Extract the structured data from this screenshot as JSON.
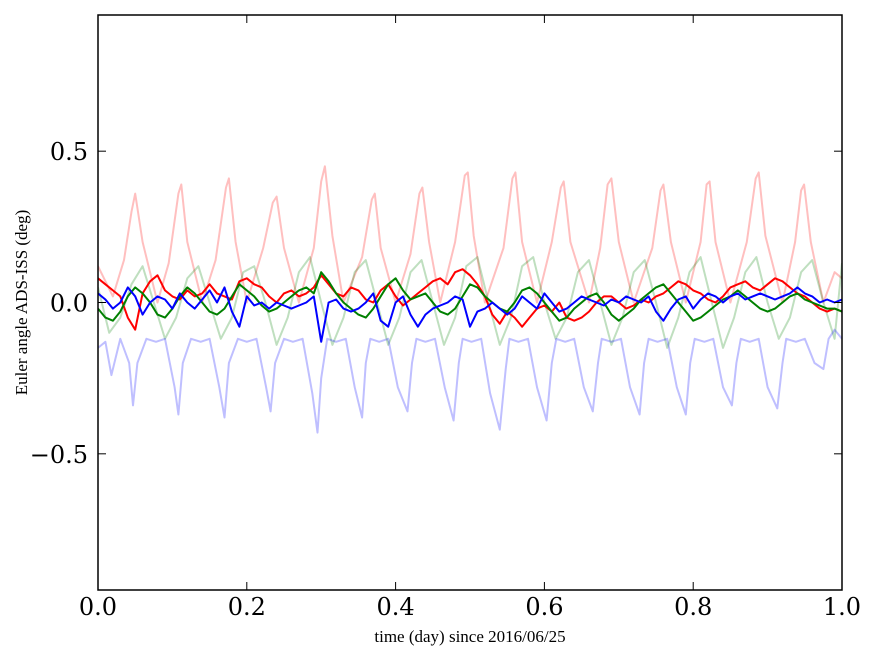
{
  "chart_data": {
    "type": "line",
    "xlabel": "time (day) since 2016/06/25",
    "ylabel": "Euler angle ADS-ISS (deg)",
    "xlim": [
      0.0,
      1.0
    ],
    "ylim": [
      -0.95,
      0.95
    ],
    "xticks": [
      0.0,
      0.2,
      0.4,
      0.6,
      0.8,
      1.0
    ],
    "xtick_labels": [
      "0.0",
      "0.2",
      "0.4",
      "0.6",
      "0.8",
      "1.0"
    ],
    "yticks": [
      -0.5,
      0.0,
      0.5
    ],
    "ytick_labels": [
      "−0.5",
      "0.0",
      "0.5"
    ],
    "grid": false,
    "legend": "none",
    "series": [
      {
        "color": "#ff0000",
        "opacity": 0.25,
        "stroke": 2,
        "x": [
          0.0,
          0.02,
          0.035,
          0.045,
          0.05,
          0.06,
          0.08,
          0.095,
          0.108,
          0.112,
          0.12,
          0.14,
          0.158,
          0.172,
          0.176,
          0.185,
          0.2,
          0.222,
          0.235,
          0.24,
          0.25,
          0.27,
          0.29,
          0.3,
          0.305,
          0.315,
          0.33,
          0.355,
          0.368,
          0.372,
          0.38,
          0.4,
          0.42,
          0.432,
          0.436,
          0.445,
          0.46,
          0.48,
          0.493,
          0.497,
          0.505,
          0.52,
          0.545,
          0.557,
          0.561,
          0.57,
          0.59,
          0.61,
          0.622,
          0.626,
          0.635,
          0.66,
          0.675,
          0.685,
          0.69,
          0.7,
          0.72,
          0.745,
          0.756,
          0.76,
          0.77,
          0.79,
          0.81,
          0.818,
          0.822,
          0.83,
          0.85,
          0.872,
          0.884,
          0.888,
          0.897,
          0.92,
          0.937,
          0.945,
          0.949,
          0.958,
          0.975,
          0.99,
          1.0
        ],
        "y": [
          0.12,
          0.02,
          0.14,
          0.3,
          0.36,
          0.2,
          0.0,
          0.13,
          0.36,
          0.39,
          0.2,
          0.0,
          0.14,
          0.38,
          0.41,
          0.2,
          0.0,
          0.18,
          0.33,
          0.35,
          0.18,
          0.0,
          0.18,
          0.4,
          0.45,
          0.22,
          0.0,
          0.15,
          0.34,
          0.36,
          0.18,
          0.0,
          0.16,
          0.36,
          0.38,
          0.2,
          0.0,
          0.2,
          0.42,
          0.43,
          0.22,
          0.0,
          0.18,
          0.41,
          0.43,
          0.2,
          0.0,
          0.2,
          0.38,
          0.4,
          0.2,
          0.0,
          0.18,
          0.39,
          0.41,
          0.2,
          0.0,
          0.18,
          0.37,
          0.39,
          0.2,
          0.0,
          0.2,
          0.39,
          0.4,
          0.2,
          0.0,
          0.2,
          0.41,
          0.43,
          0.22,
          0.0,
          0.2,
          0.37,
          0.39,
          0.2,
          0.0,
          0.1,
          0.08
        ]
      },
      {
        "color": "#008000",
        "opacity": 0.25,
        "stroke": 2,
        "x": [
          0.0,
          0.015,
          0.03,
          0.045,
          0.06,
          0.075,
          0.09,
          0.105,
          0.12,
          0.135,
          0.15,
          0.165,
          0.18,
          0.195,
          0.21,
          0.225,
          0.24,
          0.255,
          0.27,
          0.285,
          0.3,
          0.315,
          0.33,
          0.345,
          0.36,
          0.375,
          0.39,
          0.405,
          0.42,
          0.435,
          0.45,
          0.465,
          0.48,
          0.495,
          0.51,
          0.525,
          0.54,
          0.555,
          0.57,
          0.585,
          0.6,
          0.615,
          0.63,
          0.645,
          0.66,
          0.675,
          0.69,
          0.705,
          0.72,
          0.735,
          0.75,
          0.765,
          0.78,
          0.795,
          0.81,
          0.825,
          0.84,
          0.855,
          0.87,
          0.885,
          0.9,
          0.915,
          0.93,
          0.945,
          0.96,
          0.975,
          0.99,
          1.0
        ],
        "y": [
          0.05,
          -0.1,
          -0.05,
          0.06,
          0.12,
          0.0,
          -0.12,
          -0.05,
          0.08,
          0.12,
          0.0,
          -0.12,
          -0.05,
          0.1,
          0.12,
          0.0,
          -0.14,
          -0.05,
          0.1,
          0.15,
          0.0,
          -0.14,
          -0.05,
          0.1,
          0.14,
          0.0,
          -0.14,
          -0.05,
          0.1,
          0.14,
          0.0,
          -0.14,
          -0.05,
          0.12,
          0.15,
          0.0,
          -0.14,
          -0.05,
          0.12,
          0.15,
          0.0,
          -0.12,
          -0.05,
          0.1,
          0.14,
          0.0,
          -0.14,
          -0.05,
          0.1,
          0.14,
          0.0,
          -0.15,
          -0.05,
          0.1,
          0.15,
          0.0,
          -0.15,
          -0.05,
          0.1,
          0.15,
          0.0,
          -0.12,
          -0.05,
          0.1,
          0.14,
          0.0,
          -0.12,
          0.13
        ]
      },
      {
        "color": "#0000ff",
        "opacity": 0.25,
        "stroke": 2,
        "x": [
          0.0,
          0.01,
          0.018,
          0.03,
          0.042,
          0.047,
          0.053,
          0.065,
          0.078,
          0.09,
          0.103,
          0.108,
          0.114,
          0.125,
          0.138,
          0.15,
          0.163,
          0.17,
          0.176,
          0.188,
          0.2,
          0.213,
          0.226,
          0.232,
          0.238,
          0.25,
          0.262,
          0.275,
          0.288,
          0.295,
          0.3,
          0.308,
          0.32,
          0.333,
          0.345,
          0.355,
          0.36,
          0.366,
          0.378,
          0.39,
          0.403,
          0.416,
          0.422,
          0.428,
          0.44,
          0.453,
          0.466,
          0.478,
          0.485,
          0.49,
          0.502,
          0.515,
          0.527,
          0.54,
          0.548,
          0.553,
          0.565,
          0.578,
          0.59,
          0.603,
          0.61,
          0.616,
          0.628,
          0.64,
          0.653,
          0.665,
          0.672,
          0.677,
          0.69,
          0.703,
          0.715,
          0.728,
          0.734,
          0.74,
          0.752,
          0.765,
          0.778,
          0.79,
          0.796,
          0.802,
          0.815,
          0.827,
          0.84,
          0.852,
          0.858,
          0.864,
          0.876,
          0.888,
          0.9,
          0.913,
          0.92,
          0.925,
          0.938,
          0.95,
          0.963,
          0.975,
          0.982,
          0.99,
          1.0
        ],
        "y": [
          -0.15,
          -0.13,
          -0.24,
          -0.12,
          -0.2,
          -0.34,
          -0.2,
          -0.12,
          -0.13,
          -0.12,
          -0.28,
          -0.37,
          -0.2,
          -0.12,
          -0.13,
          -0.12,
          -0.28,
          -0.38,
          -0.2,
          -0.12,
          -0.13,
          -0.12,
          -0.28,
          -0.36,
          -0.2,
          -0.12,
          -0.13,
          -0.12,
          -0.3,
          -0.43,
          -0.25,
          -0.12,
          -0.13,
          -0.12,
          -0.28,
          -0.38,
          -0.2,
          -0.12,
          -0.13,
          -0.12,
          -0.28,
          -0.36,
          -0.2,
          -0.12,
          -0.13,
          -0.12,
          -0.28,
          -0.39,
          -0.2,
          -0.12,
          -0.13,
          -0.12,
          -0.3,
          -0.42,
          -0.22,
          -0.12,
          -0.13,
          -0.12,
          -0.28,
          -0.39,
          -0.2,
          -0.12,
          -0.13,
          -0.12,
          -0.28,
          -0.36,
          -0.2,
          -0.12,
          -0.13,
          -0.12,
          -0.28,
          -0.37,
          -0.2,
          -0.12,
          -0.13,
          -0.12,
          -0.28,
          -0.37,
          -0.2,
          -0.12,
          -0.13,
          -0.12,
          -0.28,
          -0.34,
          -0.2,
          -0.12,
          -0.13,
          -0.12,
          -0.28,
          -0.35,
          -0.2,
          -0.12,
          -0.13,
          -0.12,
          -0.2,
          -0.22,
          -0.12,
          -0.09,
          -0.12
        ]
      },
      {
        "color": "#ff0000",
        "opacity": 1,
        "stroke": 2,
        "x": [
          0.0,
          0.01,
          0.02,
          0.03,
          0.04,
          0.05,
          0.06,
          0.07,
          0.08,
          0.09,
          0.1,
          0.11,
          0.12,
          0.13,
          0.14,
          0.15,
          0.16,
          0.17,
          0.18,
          0.19,
          0.2,
          0.21,
          0.22,
          0.23,
          0.24,
          0.25,
          0.26,
          0.27,
          0.28,
          0.29,
          0.3,
          0.31,
          0.32,
          0.33,
          0.34,
          0.35,
          0.36,
          0.37,
          0.38,
          0.39,
          0.4,
          0.41,
          0.42,
          0.43,
          0.44,
          0.45,
          0.46,
          0.47,
          0.48,
          0.49,
          0.5,
          0.51,
          0.52,
          0.53,
          0.54,
          0.55,
          0.56,
          0.57,
          0.58,
          0.59,
          0.6,
          0.61,
          0.62,
          0.63,
          0.64,
          0.65,
          0.66,
          0.67,
          0.68,
          0.69,
          0.7,
          0.71,
          0.72,
          0.73,
          0.74,
          0.75,
          0.76,
          0.77,
          0.78,
          0.79,
          0.8,
          0.81,
          0.82,
          0.83,
          0.84,
          0.85,
          0.86,
          0.87,
          0.88,
          0.89,
          0.9,
          0.91,
          0.92,
          0.93,
          0.94,
          0.95,
          0.96,
          0.97,
          0.98,
          0.99,
          1.0
        ],
        "y": [
          0.08,
          0.06,
          0.04,
          0.02,
          -0.05,
          -0.09,
          0.03,
          0.07,
          0.09,
          0.04,
          0.02,
          0.01,
          0.04,
          0.02,
          0.03,
          0.06,
          0.03,
          0.02,
          0.01,
          0.07,
          0.08,
          0.06,
          0.05,
          0.02,
          0.0,
          0.03,
          0.04,
          0.02,
          0.03,
          0.05,
          0.09,
          0.06,
          0.03,
          0.02,
          0.05,
          0.04,
          0.01,
          0.0,
          0.04,
          0.06,
          0.02,
          -0.01,
          0.01,
          0.03,
          0.05,
          0.07,
          0.08,
          0.06,
          0.1,
          0.11,
          0.09,
          0.06,
          0.02,
          -0.04,
          -0.07,
          -0.03,
          -0.05,
          -0.08,
          -0.05,
          -0.02,
          -0.01,
          -0.03,
          0.0,
          -0.05,
          -0.06,
          -0.05,
          -0.03,
          0.0,
          0.02,
          0.02,
          0.0,
          -0.02,
          -0.01,
          0.01,
          0.0,
          0.02,
          0.03,
          0.05,
          0.07,
          0.06,
          0.04,
          0.03,
          0.01,
          0.0,
          0.02,
          0.05,
          0.06,
          0.07,
          0.05,
          0.04,
          0.06,
          0.08,
          0.07,
          0.05,
          0.03,
          0.02,
          0.0,
          -0.02,
          -0.03,
          -0.02,
          -0.03
        ]
      },
      {
        "color": "#008000",
        "opacity": 1,
        "stroke": 2,
        "x": [
          0.0,
          0.01,
          0.02,
          0.03,
          0.04,
          0.05,
          0.06,
          0.07,
          0.08,
          0.09,
          0.1,
          0.11,
          0.12,
          0.13,
          0.14,
          0.15,
          0.16,
          0.17,
          0.18,
          0.19,
          0.2,
          0.21,
          0.22,
          0.23,
          0.24,
          0.25,
          0.26,
          0.27,
          0.28,
          0.29,
          0.3,
          0.31,
          0.32,
          0.33,
          0.34,
          0.35,
          0.36,
          0.37,
          0.38,
          0.39,
          0.4,
          0.41,
          0.42,
          0.43,
          0.44,
          0.45,
          0.46,
          0.47,
          0.48,
          0.49,
          0.5,
          0.51,
          0.52,
          0.53,
          0.54,
          0.55,
          0.56,
          0.57,
          0.58,
          0.59,
          0.6,
          0.61,
          0.62,
          0.63,
          0.64,
          0.65,
          0.66,
          0.67,
          0.68,
          0.69,
          0.7,
          0.71,
          0.72,
          0.73,
          0.74,
          0.75,
          0.76,
          0.77,
          0.78,
          0.79,
          0.8,
          0.81,
          0.82,
          0.83,
          0.84,
          0.85,
          0.86,
          0.87,
          0.88,
          0.89,
          0.9,
          0.91,
          0.92,
          0.93,
          0.94,
          0.95,
          0.96,
          0.97,
          0.98,
          0.99,
          1.0
        ],
        "y": [
          -0.02,
          -0.05,
          -0.06,
          -0.03,
          0.02,
          0.05,
          0.03,
          0.0,
          -0.04,
          -0.05,
          -0.02,
          0.02,
          0.05,
          0.03,
          0.0,
          -0.03,
          -0.04,
          -0.02,
          0.02,
          0.06,
          0.04,
          0.02,
          -0.01,
          -0.03,
          -0.02,
          0.0,
          0.02,
          0.04,
          0.05,
          0.03,
          0.1,
          0.07,
          0.03,
          0.0,
          -0.02,
          -0.04,
          -0.05,
          -0.02,
          0.02,
          0.06,
          0.08,
          0.04,
          0.01,
          0.02,
          0.03,
          0.0,
          -0.03,
          -0.04,
          -0.02,
          0.02,
          0.06,
          0.05,
          0.02,
          0.0,
          -0.02,
          -0.03,
          0.0,
          0.04,
          0.05,
          0.03,
          0.0,
          -0.03,
          -0.06,
          -0.05,
          -0.02,
          0.0,
          0.02,
          0.03,
          0.0,
          -0.04,
          -0.06,
          -0.04,
          -0.02,
          0.01,
          0.03,
          0.05,
          0.06,
          0.03,
          0.0,
          -0.03,
          -0.06,
          -0.05,
          -0.03,
          -0.01,
          0.01,
          0.02,
          0.04,
          0.02,
          0.0,
          -0.02,
          -0.03,
          -0.02,
          0.0,
          0.02,
          0.03,
          0.01,
          0.0,
          -0.01,
          -0.02,
          -0.02,
          -0.03
        ]
      },
      {
        "color": "#0000ff",
        "opacity": 1,
        "stroke": 2,
        "x": [
          0.0,
          0.01,
          0.02,
          0.03,
          0.04,
          0.05,
          0.06,
          0.07,
          0.08,
          0.09,
          0.1,
          0.11,
          0.12,
          0.13,
          0.14,
          0.15,
          0.16,
          0.17,
          0.18,
          0.19,
          0.2,
          0.21,
          0.22,
          0.23,
          0.24,
          0.25,
          0.26,
          0.27,
          0.28,
          0.29,
          0.3,
          0.31,
          0.32,
          0.33,
          0.34,
          0.35,
          0.36,
          0.37,
          0.38,
          0.39,
          0.4,
          0.41,
          0.42,
          0.43,
          0.44,
          0.45,
          0.46,
          0.47,
          0.48,
          0.49,
          0.5,
          0.51,
          0.52,
          0.53,
          0.54,
          0.55,
          0.56,
          0.57,
          0.58,
          0.59,
          0.6,
          0.61,
          0.62,
          0.63,
          0.64,
          0.65,
          0.66,
          0.67,
          0.68,
          0.69,
          0.7,
          0.71,
          0.72,
          0.73,
          0.74,
          0.75,
          0.76,
          0.77,
          0.78,
          0.79,
          0.8,
          0.81,
          0.82,
          0.83,
          0.84,
          0.85,
          0.86,
          0.87,
          0.88,
          0.89,
          0.9,
          0.91,
          0.92,
          0.93,
          0.94,
          0.95,
          0.96,
          0.97,
          0.98,
          0.99,
          1.0
        ],
        "y": [
          0.03,
          0.01,
          -0.02,
          0.0,
          0.05,
          0.02,
          -0.04,
          0.0,
          0.02,
          0.01,
          -0.02,
          0.03,
          0.0,
          -0.02,
          0.01,
          0.04,
          0.0,
          0.05,
          -0.03,
          -0.08,
          0.02,
          -0.01,
          0.0,
          -0.02,
          0.0,
          -0.01,
          -0.02,
          -0.01,
          0.0,
          0.02,
          -0.13,
          0.0,
          0.01,
          -0.02,
          -0.03,
          -0.02,
          0.0,
          0.03,
          -0.06,
          -0.08,
          0.0,
          0.02,
          -0.04,
          -0.08,
          -0.04,
          -0.02,
          -0.01,
          0.0,
          0.02,
          0.01,
          -0.08,
          -0.03,
          -0.02,
          0.0,
          -0.02,
          -0.04,
          -0.02,
          0.02,
          0.0,
          -0.02,
          0.03,
          0.0,
          -0.03,
          -0.02,
          0.0,
          0.02,
          0.01,
          0.0,
          -0.01,
          0.01,
          0.0,
          0.02,
          0.01,
          0.0,
          0.02,
          -0.03,
          -0.06,
          -0.02,
          0.01,
          0.02,
          -0.02,
          0.01,
          0.03,
          0.02,
          0.0,
          0.02,
          0.03,
          0.01,
          0.02,
          0.03,
          0.02,
          0.01,
          0.02,
          0.03,
          0.05,
          0.03,
          0.02,
          0.0,
          0.01,
          0.0,
          0.01
        ]
      }
    ]
  }
}
